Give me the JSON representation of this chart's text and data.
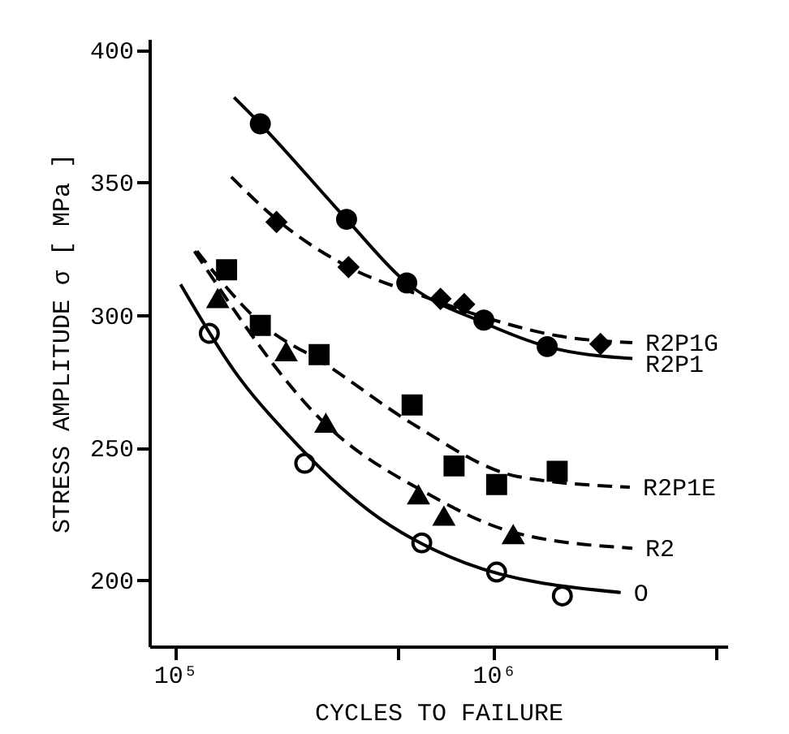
{
  "chart_data": {
    "type": "scatter",
    "xlabel": "CYCLES TO FAILURE",
    "ylabel": "STRESS AMPLITUDE  σ  [ MPa ]",
    "log": "x",
    "xlim": [
      83000,
      5400000
    ],
    "ylim": [
      175,
      404
    ],
    "xticks": [
      {
        "value": 100000,
        "label": "10⁵"
      },
      {
        "value": 500000,
        "label": null
      },
      {
        "value": 1000000,
        "label": "10⁶"
      },
      {
        "value": 5000000,
        "label": null
      }
    ],
    "yticks": [
      200,
      250,
      300,
      350,
      400
    ],
    "grid": false,
    "series": [
      {
        "marker": "circle",
        "color": "#000000",
        "x": [
          185000,
          345000,
          533000,
          930000,
          1470000
        ],
        "values": [
          372,
          336,
          312,
          298,
          288
        ]
      },
      {
        "marker": "diamond",
        "color": "#000000",
        "x": [
          208000,
          350000,
          680000,
          807000,
          2160000
        ],
        "values": [
          335,
          318,
          306,
          304,
          289
        ]
      },
      {
        "marker": "square",
        "color": "#000000",
        "x": [
          145000,
          185000,
          283000,
          554000,
          750000,
          1020000,
          1580000
        ],
        "values": [
          317,
          296,
          285,
          266,
          243,
          236,
          241
        ]
      },
      {
        "marker": "triangle",
        "color": "#000000",
        "x": [
          136000,
          223000,
          297000,
          580000,
          697000,
          1150000
        ],
        "values": [
          306,
          286,
          259,
          232,
          224,
          217
        ]
      },
      {
        "marker": "circle",
        "color": "#ffffff",
        "x": [
          128000,
          255000,
          594000,
          1020000,
          1640000
        ],
        "values": [
          293,
          244,
          214,
          203,
          194
        ]
      },
      {
        "type": "line",
        "name": "R2P1G",
        "line_style": "dashed",
        "color": "#000000",
        "x": [
          150000,
          208000,
          350000,
          600000,
          1000000,
          1600000,
          2720000
        ],
        "values": [
          352,
          336,
          318,
          307,
          298,
          292,
          289.5
        ]
      },
      {
        "type": "line",
        "name": "R2P1",
        "line_style": "solid",
        "color": "#000000",
        "x": [
          153000,
          185000,
          345000,
          533000,
          930000,
          1470000,
          2720000
        ],
        "values": [
          382,
          372,
          336,
          312,
          297,
          288,
          283.5
        ]
      },
      {
        "type": "line",
        "name": "R2P1E",
        "line_style": "dashed",
        "color": "#000000",
        "x": [
          117000,
          185000,
          300000,
          554000,
          1190000,
          2670000
        ],
        "values": [
          324,
          297,
          281,
          259,
          239,
          235
        ]
      },
      {
        "type": "line",
        "name": "R2",
        "line_style": "dashed",
        "color": "#000000",
        "x": [
          115000,
          295000,
          610000,
          1150000,
          2720000
        ],
        "values": [
          324,
          259,
          233,
          218,
          212
        ]
      },
      {
        "type": "line",
        "name": "O",
        "line_style": "solid",
        "color": "#000000",
        "x": [
          104000,
          153000,
          229000,
          407000,
          810000,
          2500000
        ],
        "values": [
          311.5,
          279,
          254,
          226,
          206.5,
          195.3
        ]
      }
    ]
  }
}
